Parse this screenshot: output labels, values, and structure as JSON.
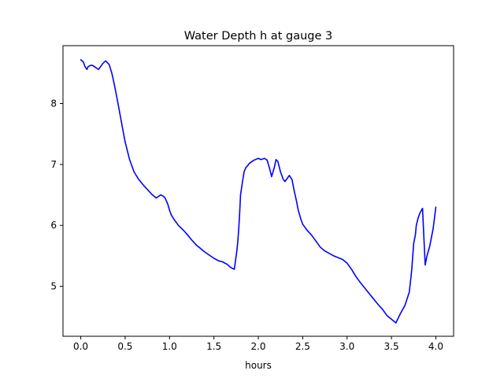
{
  "chart_data": {
    "type": "line",
    "title": "Water Depth h at gauge 3",
    "xlabel": "hours",
    "ylabel": "",
    "xlim": [
      -0.2,
      4.2
    ],
    "ylim": [
      4.18,
      8.95
    ],
    "grid": false,
    "xticks": [
      0.0,
      0.5,
      1.0,
      1.5,
      2.0,
      2.5,
      3.0,
      3.5,
      4.0
    ],
    "xtick_labels": [
      "0.0",
      "0.5",
      "1.0",
      "1.5",
      "2.0",
      "2.5",
      "3.0",
      "3.5",
      "4.0"
    ],
    "yticks": [
      5,
      6,
      7,
      8
    ],
    "ytick_labels": [
      "5",
      "6",
      "7",
      "8"
    ],
    "series": [
      {
        "color": "#0000ff",
        "x": [
          0.0,
          0.03,
          0.05,
          0.07,
          0.08,
          0.1,
          0.12,
          0.14,
          0.16,
          0.18,
          0.2,
          0.22,
          0.25,
          0.28,
          0.32,
          0.35,
          0.38,
          0.42,
          0.46,
          0.5,
          0.55,
          0.6,
          0.65,
          0.7,
          0.75,
          0.8,
          0.85,
          0.9,
          0.93,
          0.95,
          0.98,
          1.0,
          1.02,
          1.05,
          1.1,
          1.15,
          1.2,
          1.25,
          1.3,
          1.35,
          1.4,
          1.45,
          1.5,
          1.55,
          1.6,
          1.65,
          1.68,
          1.7,
          1.73,
          1.76,
          1.77,
          1.78,
          1.79,
          1.8,
          1.82,
          1.84,
          1.86,
          1.88,
          1.9,
          1.95,
          2.0,
          2.03,
          2.05,
          2.07,
          2.1,
          2.13,
          2.15,
          2.18,
          2.2,
          2.22,
          2.25,
          2.28,
          2.3,
          2.33,
          2.35,
          2.38,
          2.4,
          2.43,
          2.45,
          2.48,
          2.5,
          2.53,
          2.55,
          2.6,
          2.65,
          2.7,
          2.75,
          2.8,
          2.85,
          2.9,
          2.95,
          3.0,
          3.05,
          3.1,
          3.15,
          3.2,
          3.25,
          3.3,
          3.35,
          3.4,
          3.45,
          3.5,
          3.55,
          3.6,
          3.65,
          3.7,
          3.72,
          3.73,
          3.74,
          3.75,
          3.77,
          3.78,
          3.8,
          3.82,
          3.85,
          3.88,
          3.9,
          3.93,
          3.95,
          3.97,
          4.0
        ],
        "y": [
          8.72,
          8.68,
          8.6,
          8.56,
          8.6,
          8.62,
          8.63,
          8.62,
          8.6,
          8.58,
          8.56,
          8.6,
          8.66,
          8.7,
          8.64,
          8.5,
          8.3,
          8.0,
          7.68,
          7.37,
          7.08,
          6.88,
          6.76,
          6.67,
          6.59,
          6.51,
          6.45,
          6.5,
          6.48,
          6.45,
          6.35,
          6.25,
          6.17,
          6.1,
          6.0,
          5.93,
          5.85,
          5.76,
          5.68,
          5.62,
          5.56,
          5.51,
          5.46,
          5.42,
          5.4,
          5.36,
          5.32,
          5.3,
          5.28,
          5.6,
          5.75,
          5.95,
          6.2,
          6.5,
          6.7,
          6.88,
          6.95,
          6.98,
          7.02,
          7.07,
          7.1,
          7.08,
          7.09,
          7.1,
          7.07,
          6.92,
          6.8,
          6.95,
          7.08,
          7.05,
          6.88,
          6.76,
          6.72,
          6.78,
          6.82,
          6.75,
          6.6,
          6.4,
          6.25,
          6.1,
          6.02,
          5.96,
          5.92,
          5.84,
          5.74,
          5.64,
          5.58,
          5.54,
          5.5,
          5.47,
          5.44,
          5.38,
          5.28,
          5.16,
          5.06,
          4.97,
          4.88,
          4.79,
          4.7,
          4.62,
          4.52,
          4.46,
          4.4,
          4.55,
          4.68,
          4.9,
          5.15,
          5.3,
          5.5,
          5.7,
          5.85,
          6.0,
          6.12,
          6.2,
          6.28,
          5.35,
          5.5,
          5.65,
          5.8,
          5.95,
          6.3
        ]
      }
    ]
  }
}
